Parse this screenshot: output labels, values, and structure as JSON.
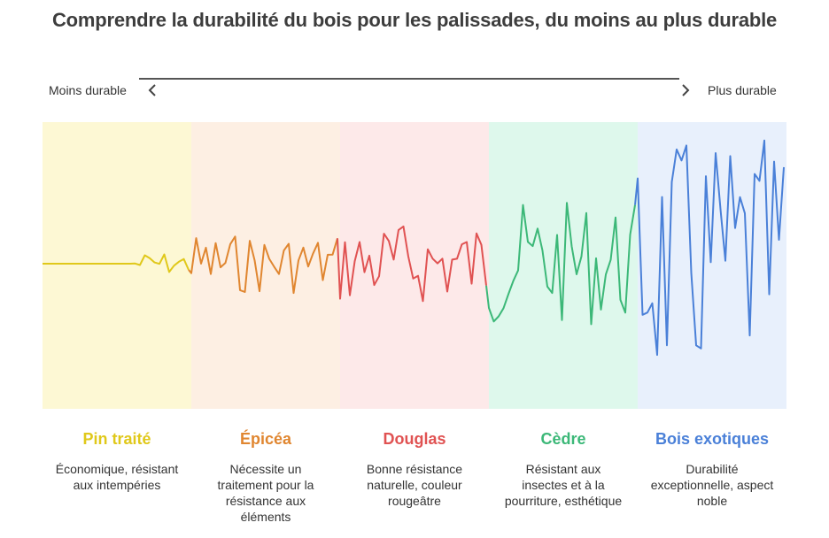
{
  "title": "Comprendre la durabilité du bois pour les palissades, du moins au plus durable",
  "scale": {
    "left_label": "Moins durable",
    "right_label": "Plus durable",
    "left_icon": "chevron-left-icon",
    "right_icon": "chevron-right-icon"
  },
  "categories": [
    {
      "name": "Pin traité",
      "description": "Économique, résistant aux intempéries",
      "color": "#e0c81a",
      "background": "#fdf8d4",
      "amplitude": 0.08
    },
    {
      "name": "Épicéa",
      "description": "Nécessite un traitement pour la résistance aux éléments",
      "color": "#e08630",
      "background": "#fdefe3",
      "amplitude": 0.22
    },
    {
      "name": "Douglas",
      "description": "Bonne résistance naturelle, couleur rougeâtre",
      "color": "#e05252",
      "background": "#fde9e9",
      "amplitude": 0.3
    },
    {
      "name": "Cèdre",
      "description": "Résistant aux insectes et à la pourriture, esthétique",
      "color": "#3cb878",
      "background": "#def8ec",
      "amplitude": 0.45
    },
    {
      "name": "Bois exotiques",
      "description": "Durabilité exceptionnelle, aspect noble",
      "color": "#4a80d8",
      "background": "#e8f0fc",
      "amplitude": 0.9
    }
  ]
}
